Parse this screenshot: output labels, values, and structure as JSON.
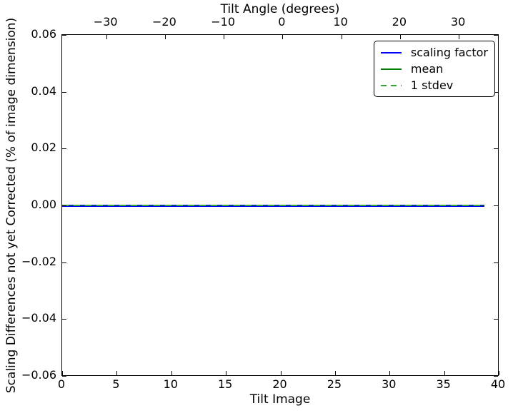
{
  "chart_data": {
    "type": "line",
    "title": "",
    "top_xlabel": "Tilt Angle (degrees)",
    "xlabel": "Tilt Image",
    "ylabel": "Scaling Differences not yet Corrected (% of image dimension)",
    "xlim": [
      0,
      40
    ],
    "top_xlim": [
      -37.5,
      36.8
    ],
    "ylim": [
      -0.06,
      0.06
    ],
    "x_ticks": [
      0,
      5,
      10,
      15,
      20,
      25,
      30,
      35,
      40
    ],
    "top_x_ticks": [
      -30,
      -20,
      -10,
      0,
      10,
      20,
      30
    ],
    "y_ticks": [
      0.06,
      0.04,
      0.02,
      0.0,
      -0.02,
      -0.04,
      -0.06
    ],
    "grid": false,
    "legend_position": "upper right",
    "series": [
      {
        "name": "scaling factor",
        "color": "#0000ff",
        "style": "solid",
        "x_range": [
          0,
          38.6
        ],
        "y_value": 0.0
      },
      {
        "name": "mean",
        "color": "#008000",
        "style": "solid",
        "x_range": [
          0,
          38.6
        ],
        "y_value": 0.0
      },
      {
        "name": "1 stdev",
        "color": "#33a633",
        "style": "dashed",
        "x_range": [
          0,
          38.6
        ],
        "y_value": 0.0
      }
    ],
    "axis_color": "#000000",
    "background_color": "#ffffff"
  }
}
